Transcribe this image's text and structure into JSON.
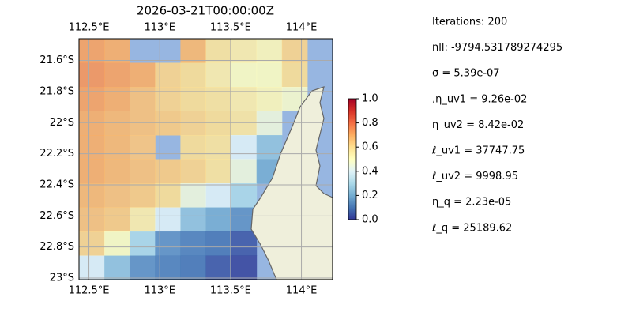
{
  "map": {
    "title": "2026-03-21T00:00:00Z",
    "lonlim": [
      112.43,
      114.22
    ],
    "latlim": [
      21.46,
      23.01
    ],
    "lon_ticks": [
      {
        "value": 112.5,
        "label": "112.5°E"
      },
      {
        "value": 113,
        "label": "113°E"
      },
      {
        "value": 113.5,
        "label": "113.5°E"
      },
      {
        "value": 114,
        "label": "114°E"
      }
    ],
    "lat_ticks": [
      {
        "value": 21.6,
        "label": "21.6°S"
      },
      {
        "value": 21.8,
        "label": "21.8°S"
      },
      {
        "value": 22,
        "label": "22°S"
      },
      {
        "value": 22.2,
        "label": "22.2°S"
      },
      {
        "value": 22.4,
        "label": "22.4°S"
      },
      {
        "value": 22.6,
        "label": "22.6°S"
      },
      {
        "value": 22.8,
        "label": "22.8°S"
      },
      {
        "value": 23,
        "label": "23°S"
      }
    ],
    "field": {
      "cmap": "RdYlBu_r",
      "lon_edges": [
        112.43,
        112.609,
        112.788,
        112.967,
        113.146,
        113.325,
        113.504,
        113.683,
        113.862,
        114.041,
        114.22
      ],
      "lat_edges": [
        21.46,
        21.615,
        21.77,
        21.925,
        22.08,
        22.235,
        22.39,
        22.545,
        22.7,
        22.855,
        23.01
      ],
      "values": [
        [
          0.72,
          0.7,
          null,
          null,
          0.68,
          0.58,
          0.55,
          0.52,
          0.62,
          null
        ],
        [
          0.74,
          0.72,
          0.7,
          0.62,
          0.6,
          0.55,
          0.5,
          0.5,
          0.6,
          null
        ],
        [
          0.72,
          0.7,
          0.66,
          0.62,
          0.6,
          0.58,
          0.55,
          0.52,
          0.48,
          null
        ],
        [
          0.7,
          0.68,
          0.66,
          0.64,
          0.62,
          0.6,
          0.57,
          0.45,
          null,
          null
        ],
        [
          0.7,
          0.68,
          0.65,
          null,
          0.6,
          0.58,
          0.4,
          0.25,
          null,
          null
        ],
        [
          0.7,
          0.68,
          0.66,
          0.64,
          0.62,
          0.58,
          0.45,
          0.2,
          null,
          null
        ],
        [
          0.68,
          0.66,
          0.64,
          0.6,
          0.45,
          0.4,
          0.3,
          null,
          null,
          null
        ],
        [
          0.66,
          0.64,
          0.55,
          0.4,
          0.25,
          0.2,
          0.15,
          null,
          null,
          null
        ],
        [
          0.62,
          0.5,
          0.3,
          0.15,
          0.12,
          0.1,
          0.05,
          null,
          null,
          null
        ],
        [
          0.4,
          0.25,
          0.15,
          0.12,
          0.1,
          0.05,
          0.02,
          null,
          null,
          null
        ]
      ]
    },
    "colorbar": {
      "lim": [
        0,
        1
      ],
      "ticks": [
        {
          "value": 0,
          "label": "0.0"
        },
        {
          "value": 0.2,
          "label": "0.2"
        },
        {
          "value": 0.4,
          "label": "0.4"
        },
        {
          "value": 0.6,
          "label": "0.6"
        },
        {
          "value": 0.8,
          "label": "0.8"
        },
        {
          "value": 1,
          "label": "1.0"
        }
      ]
    }
  },
  "stats": [
    "Iterations: 200",
    "nll: -9794.531789274295",
    "σ = 5.39e-07",
    ",η_uv1 = 9.26e-02",
    "η_uv2 = 8.42e-02",
    "ℓ_uv1 = 37747.75",
    "ℓ_uv2 = 9998.95",
    "η_q = 2.23e-05",
    "ℓ_q = 25189.62"
  ]
}
